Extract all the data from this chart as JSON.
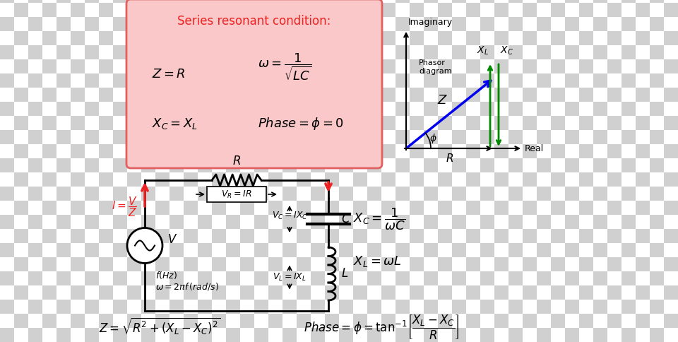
{
  "checker_light": "#d0d0d0",
  "checker_dark": "#ffffff",
  "checker_size": 20,
  "pink_box_bg": "#fac8c8",
  "pink_box_edge": "#e06060",
  "red_color": "#ee2222",
  "blue_color": "#0000ee",
  "green_color": "#008800",
  "black_color": "#000000",
  "pink_title": "Series resonant condition:",
  "phasor_label": "Phasor\ndiagram",
  "imaginary_label": "Imaginary",
  "real_label": "Real"
}
